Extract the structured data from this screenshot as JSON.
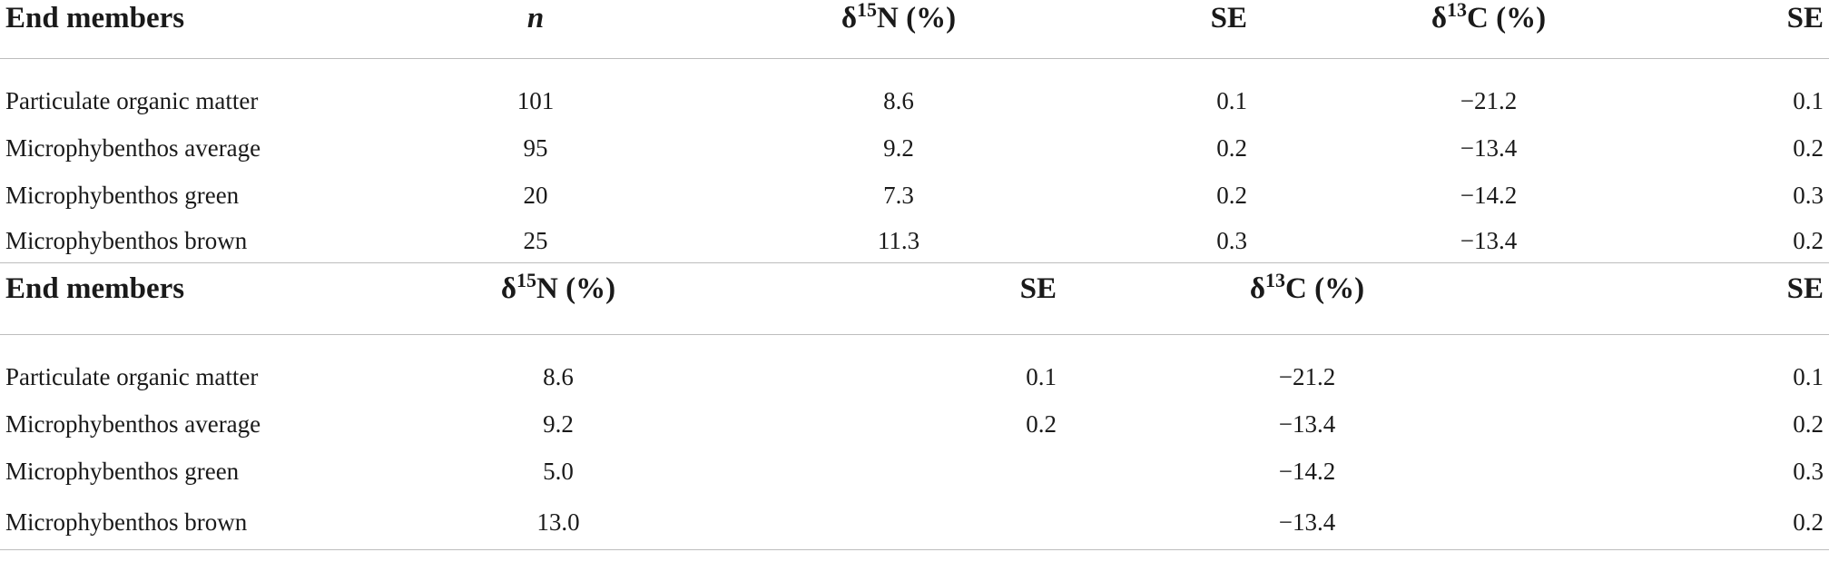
{
  "table1": {
    "headers": {
      "end_members": "End members",
      "n": "n",
      "d15n_symbol": "δ",
      "d15n_sup": "15",
      "d15n_rest": "N (%)",
      "se1": "SE",
      "d13c_symbol": "δ",
      "d13c_sup": "13",
      "d13c_rest": "C (%)",
      "se2": "SE"
    },
    "rows": [
      {
        "name": "Particulate organic matter",
        "n": "101",
        "d15n": "8.6",
        "se1": "0.1",
        "d13c": "−21.2",
        "se2": "0.1"
      },
      {
        "name": "Microphybenthos average",
        "n": "95",
        "d15n": "9.2",
        "se1": "0.2",
        "d13c": "−13.4",
        "se2": "0.2"
      },
      {
        "name": "Microphybenthos green",
        "n": "20",
        "d15n": "7.3",
        "se1": "0.2",
        "d13c": "−14.2",
        "se2": "0.3"
      },
      {
        "name": "Microphybenthos brown",
        "n": "25",
        "d15n": "11.3",
        "se1": "0.3",
        "d13c": "−13.4",
        "se2": "0.2"
      }
    ]
  },
  "table2": {
    "headers": {
      "end_members": "End members",
      "d15n_symbol": "δ",
      "d15n_sup": "15",
      "d15n_rest": "N (%)",
      "se1": "SE",
      "d13c_symbol": "δ",
      "d13c_sup": "13",
      "d13c_rest": "C (%)",
      "se2": "SE"
    },
    "rows": [
      {
        "name": "Particulate organic matter",
        "d15n": "8.6",
        "se1": "0.1",
        "d13c": "−21.2",
        "se2": "0.1"
      },
      {
        "name": "Microphybenthos average",
        "d15n": "9.2",
        "se1": "0.2",
        "d13c": "−13.4",
        "se2": "0.2"
      },
      {
        "name": "Microphybenthos green",
        "d15n": "5.0",
        "se1": "",
        "d13c": "−14.2",
        "se2": "0.3"
      },
      {
        "name": "Microphybenthos brown",
        "d15n": "13.0",
        "se1": "",
        "d13c": "−13.4",
        "se2": "0.2"
      }
    ]
  }
}
